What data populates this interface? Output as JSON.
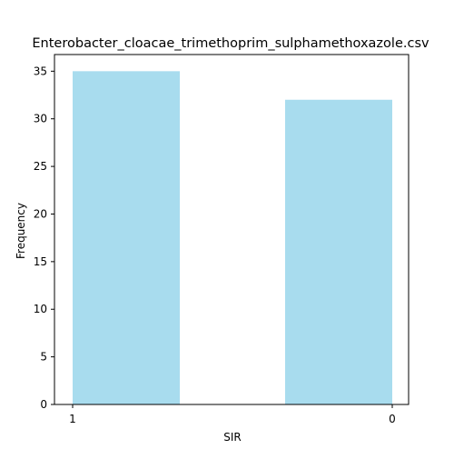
{
  "chart_data": {
    "type": "bar",
    "title": "Enterobacter_cloacae_trimethoprim_sulphamethoxazole.csv",
    "xlabel": "SIR",
    "ylabel": "Frequency",
    "categories": [
      "1",
      "0"
    ],
    "values": [
      35,
      32
    ],
    "ylim": [
      0,
      36.75
    ],
    "yticks": [
      0,
      5,
      10,
      15,
      20,
      25,
      30,
      35
    ],
    "bar_color": "#a8dcee",
    "grid": false,
    "legend": "none"
  }
}
